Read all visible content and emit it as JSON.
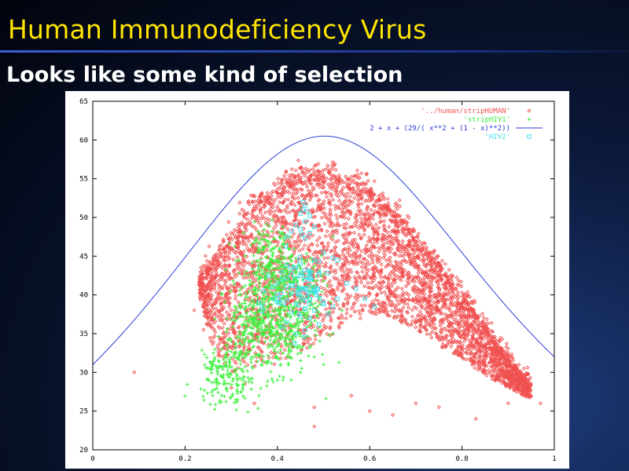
{
  "slide": {
    "title": "Human Immunodeficiency Virus",
    "subtitle": "Looks like some kind of selection"
  },
  "chart_data": {
    "type": "scatter",
    "xlim": [
      0,
      1
    ],
    "ylim": [
      20,
      65
    ],
    "x_ticks": [
      "0",
      "0.2",
      "0.4",
      "0.6",
      "0.8",
      "1"
    ],
    "y_ticks": [
      "20",
      "25",
      "30",
      "35",
      "40",
      "45",
      "50",
      "55",
      "60",
      "65"
    ],
    "legend_position": "top-right",
    "grid": false,
    "series": [
      {
        "name": "'../human/stripHUMAN'",
        "marker": "diamond",
        "color": "#f05050",
        "shape_description": "dense cloud of points; upper envelope",
        "envelope_upper": [
          [
            0.23,
            42.5
          ],
          [
            0.27,
            45
          ],
          [
            0.3,
            48
          ],
          [
            0.35,
            51.5
          ],
          [
            0.4,
            54
          ],
          [
            0.45,
            55.5
          ],
          [
            0.5,
            55.8
          ],
          [
            0.55,
            55
          ],
          [
            0.6,
            53.5
          ],
          [
            0.65,
            51
          ],
          [
            0.7,
            47.5
          ],
          [
            0.75,
            44
          ],
          [
            0.8,
            40
          ],
          [
            0.85,
            36
          ],
          [
            0.9,
            32
          ],
          [
            0.95,
            28.5
          ]
        ],
        "envelope_lower": [
          [
            0.23,
            40
          ],
          [
            0.26,
            33
          ],
          [
            0.3,
            30
          ],
          [
            0.35,
            30.5
          ],
          [
            0.4,
            31
          ],
          [
            0.45,
            32.5
          ],
          [
            0.5,
            34
          ],
          [
            0.55,
            36
          ],
          [
            0.6,
            37.5
          ],
          [
            0.65,
            37
          ],
          [
            0.7,
            35.5
          ],
          [
            0.75,
            33.5
          ],
          [
            0.8,
            31.5
          ],
          [
            0.85,
            29.5
          ],
          [
            0.9,
            28
          ],
          [
            0.95,
            26.5
          ]
        ],
        "outliers": [
          [
            0.09,
            30
          ],
          [
            0.22,
            38
          ],
          [
            0.25,
            40
          ],
          [
            0.28,
            41
          ],
          [
            0.24,
            35.5
          ],
          [
            0.3,
            28
          ],
          [
            0.33,
            28.5
          ],
          [
            0.35,
            26
          ],
          [
            0.48,
            25.5
          ],
          [
            0.48,
            23
          ],
          [
            0.56,
            27
          ],
          [
            0.6,
            25
          ],
          [
            0.65,
            24.5
          ],
          [
            0.7,
            26
          ],
          [
            0.75,
            25.5
          ],
          [
            0.83,
            24
          ],
          [
            0.9,
            26
          ],
          [
            0.94,
            27
          ],
          [
            0.97,
            26
          ]
        ]
      },
      {
        "name": "'stripHIV1'",
        "marker": "plus",
        "color": "#3ef03e",
        "cluster_center": [
          0.39,
          37.5
        ],
        "x_range": [
          0.24,
          0.55
        ],
        "y_range": [
          26,
          48
        ],
        "main_cluster": [
          [
            0.33,
            34
          ],
          [
            0.35,
            38
          ],
          [
            0.38,
            41
          ],
          [
            0.4,
            43
          ],
          [
            0.42,
            44
          ],
          [
            0.44,
            42
          ],
          [
            0.36,
            45
          ],
          [
            0.38,
            47
          ],
          [
            0.34,
            36
          ],
          [
            0.4,
            35
          ],
          [
            0.42,
            33
          ],
          [
            0.46,
            37
          ],
          [
            0.48,
            40
          ],
          [
            0.3,
            31
          ],
          [
            0.28,
            30
          ],
          [
            0.26,
            29
          ],
          [
            0.32,
            29
          ]
        ],
        "outliers": [
          [
            0.26,
            31
          ],
          [
            0.26,
            27
          ],
          [
            0.29,
            28
          ],
          [
            0.31,
            26.5
          ],
          [
            0.36,
            27
          ],
          [
            0.4,
            29
          ],
          [
            0.45,
            30
          ],
          [
            0.5,
            31
          ],
          [
            0.52,
            47.5
          ],
          [
            0.54,
            38
          ],
          [
            0.52,
            35
          ],
          [
            0.48,
            32
          ],
          [
            0.43,
            29
          ],
          [
            0.3,
            34
          ],
          [
            0.28,
            33
          ]
        ]
      },
      {
        "name": "2 + x + (29/( x**2 + (1 - x)**2))",
        "marker": "line",
        "color": "#2b3fd6",
        "function": "2 + x + 29/(x^2 + (1-x)^2)"
      },
      {
        "name": "'HIV2'",
        "marker": "square",
        "color": "#3ee0ee",
        "points": [
          [
            0.455,
            52
          ],
          [
            0.46,
            51.5
          ],
          [
            0.455,
            51
          ],
          [
            0.465,
            50.8
          ],
          [
            0.45,
            50.5
          ],
          [
            0.47,
            50.2
          ],
          [
            0.46,
            49.5
          ],
          [
            0.44,
            49
          ],
          [
            0.48,
            48.8
          ],
          [
            0.45,
            48.5
          ],
          [
            0.43,
            48.2
          ],
          [
            0.47,
            48
          ],
          [
            0.42,
            47.5
          ],
          [
            0.46,
            47.3
          ],
          [
            0.5,
            45.5
          ],
          [
            0.52,
            44.8
          ],
          [
            0.53,
            44.5
          ],
          [
            0.48,
            44.5
          ],
          [
            0.45,
            44
          ],
          [
            0.42,
            43.8
          ],
          [
            0.44,
            43.5
          ],
          [
            0.46,
            43.2
          ],
          [
            0.43,
            42.8
          ],
          [
            0.45,
            42.5
          ],
          [
            0.47,
            42.2
          ],
          [
            0.41,
            42
          ],
          [
            0.4,
            41.5
          ],
          [
            0.44,
            41.2
          ],
          [
            0.42,
            41
          ],
          [
            0.46,
            40.8
          ],
          [
            0.48,
            40.5
          ],
          [
            0.43,
            40.2
          ],
          [
            0.4,
            40
          ],
          [
            0.45,
            39.8
          ],
          [
            0.47,
            39.5
          ],
          [
            0.42,
            39.3
          ],
          [
            0.5,
            39
          ],
          [
            0.44,
            38.8
          ],
          [
            0.52,
            38.5
          ],
          [
            0.46,
            38.2
          ],
          [
            0.48,
            38
          ],
          [
            0.43,
            37.8
          ],
          [
            0.51,
            37.5
          ],
          [
            0.45,
            37.2
          ],
          [
            0.47,
            37
          ],
          [
            0.42,
            36.5
          ],
          [
            0.49,
            36.2
          ],
          [
            0.41,
            35.8
          ],
          [
            0.46,
            35.5
          ],
          [
            0.44,
            35
          ],
          [
            0.5,
            38.8
          ],
          [
            0.53,
            39.5
          ],
          [
            0.39,
            41
          ],
          [
            0.38,
            42.5
          ],
          [
            0.37,
            40.5
          ],
          [
            0.36,
            39
          ],
          [
            0.55,
            41.5
          ],
          [
            0.57,
            40.8
          ],
          [
            0.59,
            39.5
          ],
          [
            0.61,
            38.5
          ]
        ]
      }
    ]
  }
}
